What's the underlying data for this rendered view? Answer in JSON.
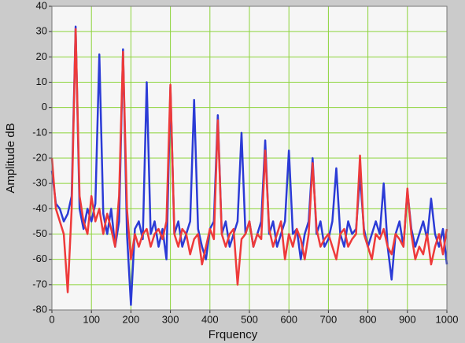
{
  "chart_data": {
    "type": "line",
    "xlabel": "Frquency",
    "ylabel": "Amplitude dB",
    "x": [
      0,
      10,
      20,
      30,
      40,
      50,
      60,
      70,
      80,
      90,
      100,
      110,
      120,
      130,
      140,
      150,
      160,
      170,
      180,
      190,
      200,
      210,
      220,
      230,
      240,
      250,
      260,
      270,
      280,
      290,
      300,
      310,
      320,
      330,
      340,
      350,
      360,
      370,
      380,
      390,
      400,
      410,
      420,
      430,
      440,
      450,
      460,
      470,
      480,
      490,
      500,
      510,
      520,
      530,
      540,
      550,
      560,
      570,
      580,
      590,
      600,
      610,
      620,
      630,
      640,
      650,
      660,
      670,
      680,
      690,
      700,
      710,
      720,
      730,
      740,
      750,
      760,
      770,
      780,
      790,
      800,
      810,
      820,
      830,
      840,
      850,
      860,
      870,
      880,
      890,
      900,
      910,
      920,
      930,
      940,
      950,
      960,
      970,
      980,
      990,
      1000
    ],
    "series": [
      {
        "color": "#2b3bd6",
        "values": [
          -25,
          -38,
          -40,
          -45,
          -42,
          -35,
          32,
          -40,
          -48,
          -40,
          -45,
          -38,
          21,
          -42,
          -50,
          -40,
          -55,
          -45,
          23,
          -50,
          -78,
          -48,
          -45,
          -52,
          10,
          -50,
          -45,
          -55,
          -48,
          -60,
          8,
          -50,
          -45,
          -55,
          -50,
          -45,
          3,
          -48,
          -55,
          -60,
          -48,
          -45,
          -3,
          -50,
          -45,
          -55,
          -50,
          -45,
          -10,
          -50,
          -45,
          -55,
          -50,
          -45,
          -13,
          -50,
          -45,
          -55,
          -50,
          -45,
          -17,
          -50,
          -48,
          -60,
          -50,
          -45,
          -20,
          -50,
          -45,
          -55,
          -52,
          -45,
          -24,
          -50,
          -55,
          -45,
          -50,
          -48,
          -27,
          -48,
          -55,
          -50,
          -45,
          -50,
          -30,
          -55,
          -68,
          -50,
          -45,
          -55,
          -33,
          -48,
          -55,
          -50,
          -45,
          -52,
          -36,
          -50,
          -55,
          -48,
          -62
        ]
      },
      {
        "color": "#ee3a3a",
        "values": [
          -20,
          -40,
          -45,
          -50,
          -73,
          -40,
          31,
          -35,
          -45,
          -50,
          -35,
          -45,
          -40,
          -50,
          -42,
          -48,
          -55,
          -35,
          22,
          -40,
          -60,
          -50,
          -55,
          -50,
          -48,
          -55,
          -50,
          -48,
          -52,
          -45,
          9,
          -50,
          -55,
          -48,
          -50,
          -58,
          -52,
          -50,
          -62,
          -55,
          -48,
          -52,
          -5,
          -50,
          -55,
          -50,
          -48,
          -70,
          -52,
          -50,
          -45,
          -55,
          -50,
          -52,
          -17,
          -48,
          -55,
          -50,
          -45,
          -60,
          -50,
          -55,
          -48,
          -52,
          -60,
          -50,
          -22,
          -48,
          -55,
          -52,
          -50,
          -55,
          -60,
          -50,
          -48,
          -55,
          -52,
          -50,
          -19,
          -50,
          -55,
          -60,
          -50,
          -52,
          -48,
          -55,
          -58,
          -50,
          -52,
          -55,
          -32,
          -50,
          -60,
          -55,
          -58,
          -50,
          -62,
          -55,
          -50,
          -58,
          -48
        ]
      }
    ],
    "xlim": [
      0,
      1000
    ],
    "xticks": [
      0,
      100,
      200,
      300,
      400,
      500,
      600,
      700,
      800,
      900,
      1000
    ],
    "ylim": [
      -80,
      40
    ],
    "yticks": [
      -80,
      -70,
      -60,
      -50,
      -40,
      -30,
      -20,
      -10,
      0,
      10,
      20,
      30,
      40
    ],
    "grid": true,
    "grid_color": "#8cd43a"
  }
}
